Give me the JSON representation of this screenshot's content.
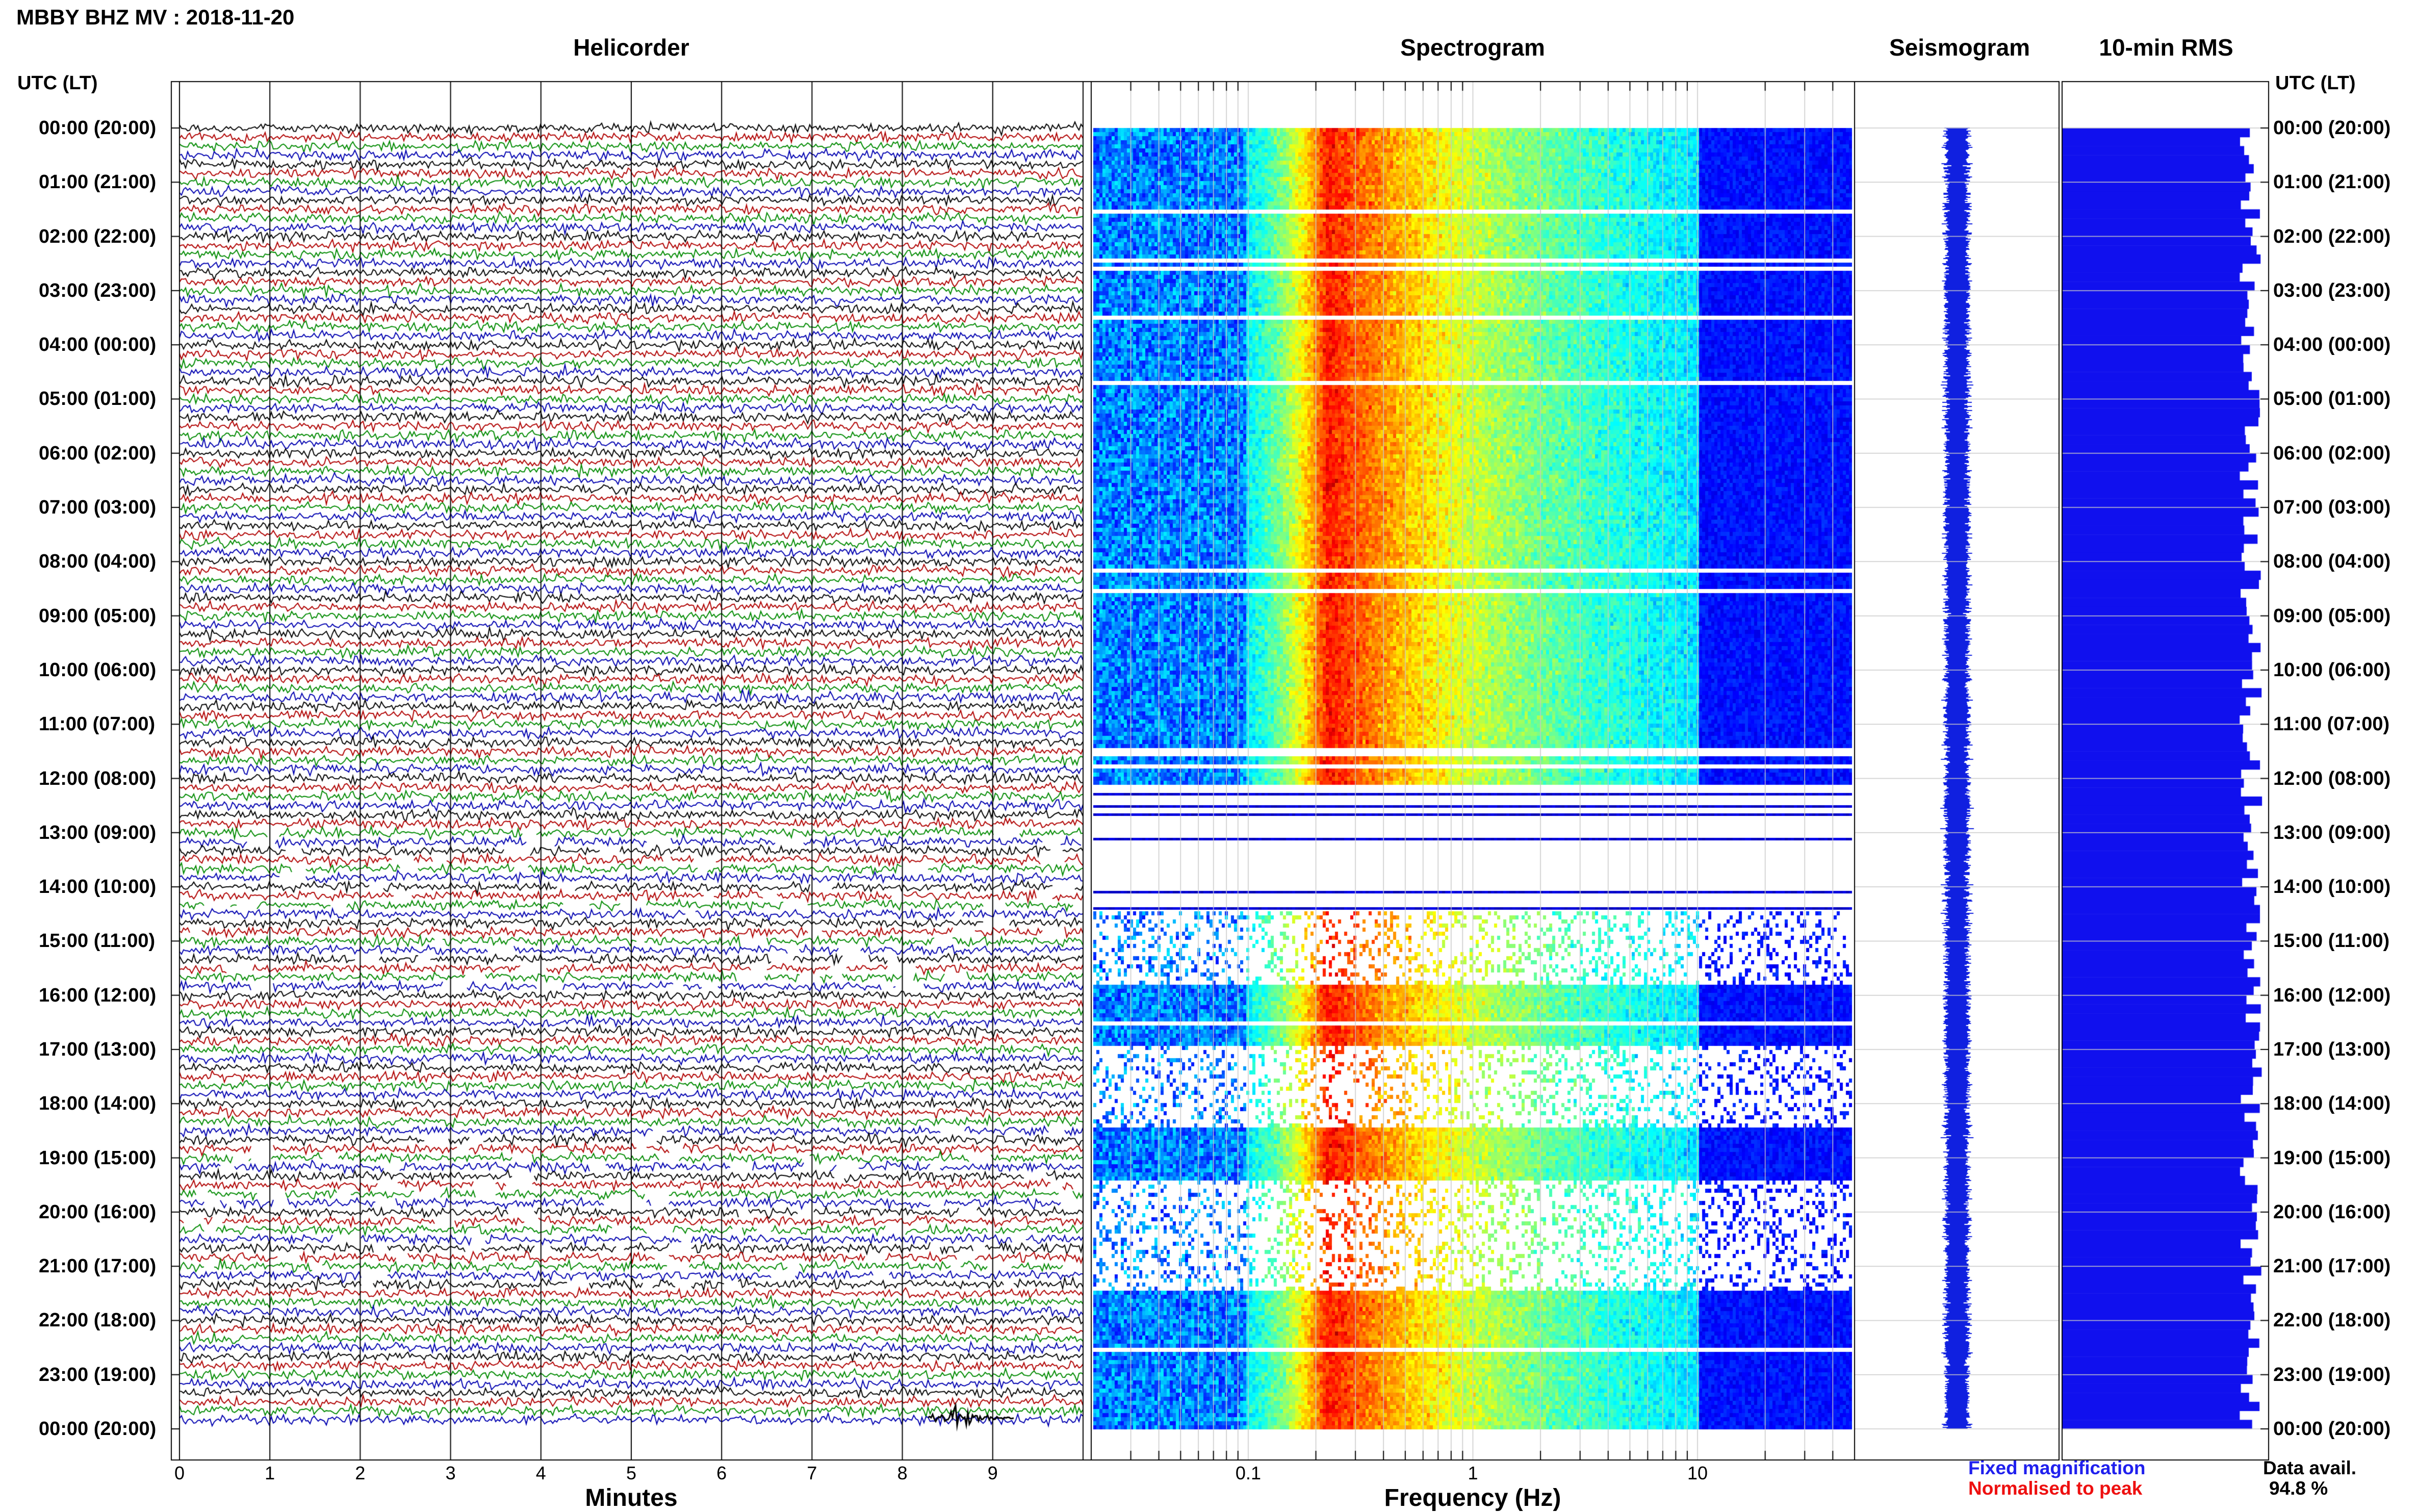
{
  "header": {
    "title": "MBBY BHZ MV : 2018-11-20"
  },
  "panels": {
    "helicorder": "Helicorder",
    "spectrogram": "Spectrogram",
    "seismogram": "Seismogram",
    "rms": "10-min RMS"
  },
  "axes": {
    "utc_label_left": "UTC (LT)",
    "utc_label_right": "UTC (LT)",
    "minutes_label": "Minutes",
    "frequency_label": "Frequency (Hz)"
  },
  "legend": {
    "fixed": "Fixed magnification",
    "normalised": "Normalised to peak",
    "data_avail_label": "Data avail.",
    "data_avail_value": "94.8 %"
  },
  "colors": {
    "trace_cycle": [
      "#000000",
      "#b00000",
      "#008a00",
      "#0000b0"
    ],
    "rms_fill": "#1010ee",
    "fixed_legend": "#2020ee",
    "normalised_legend": "#ee1010",
    "gridline": "#c8c8c8"
  },
  "chart_data": {
    "type": "heatmap",
    "station": "MBBY BHZ MV",
    "date": "2018-11-20",
    "time_ticks": [
      "00:00 (20:00)",
      "01:00 (21:00)",
      "02:00 (22:00)",
      "03:00 (23:00)",
      "04:00 (00:00)",
      "05:00 (01:00)",
      "06:00 (02:00)",
      "07:00 (03:00)",
      "08:00 (04:00)",
      "09:00 (05:00)",
      "10:00 (06:00)",
      "11:00 (07:00)",
      "12:00 (08:00)",
      "13:00 (09:00)",
      "14:00 (10:00)",
      "15:00 (11:00)",
      "16:00 (12:00)",
      "17:00 (13:00)",
      "18:00 (14:00)",
      "19:00 (15:00)",
      "20:00 (16:00)",
      "21:00 (17:00)",
      "22:00 (18:00)",
      "23:00 (19:00)",
      "00:00 (20:00)"
    ],
    "helicorder": {
      "xlabel": "Minutes",
      "xticks": [
        "0",
        "1",
        "2",
        "3",
        "4",
        "5",
        "6",
        "7",
        "8",
        "9"
      ],
      "xlim": [
        0,
        10
      ],
      "line_minutes": 10,
      "hours": 24
    },
    "spectrogram": {
      "xlabel": "Frequency (Hz)",
      "xticks": [
        "0.1",
        "1",
        "10"
      ],
      "xlim": [
        0.02,
        50
      ],
      "xscale": "log",
      "dominant_band_hz": 0.2
    },
    "rms": {
      "interval_minutes": 10,
      "relative_level_range": [
        0.86,
        0.97
      ]
    },
    "data_availability_percent": 94.8
  }
}
